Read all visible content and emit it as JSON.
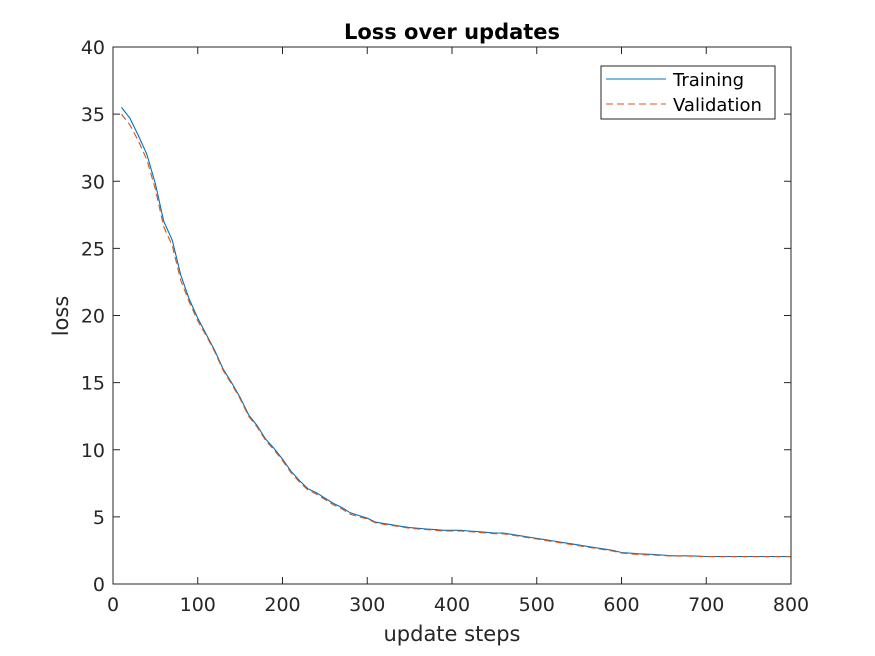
{
  "chart_data": {
    "type": "line",
    "title": "Loss over updates",
    "xlabel": "update steps",
    "ylabel": "loss",
    "xlim": [
      0,
      800
    ],
    "ylim": [
      0,
      40
    ],
    "xticks": [
      0,
      100,
      200,
      300,
      400,
      500,
      600,
      700,
      800
    ],
    "yticks": [
      0,
      5,
      10,
      15,
      20,
      25,
      30,
      35,
      40
    ],
    "grid": false,
    "legend_position": "top-right",
    "series": [
      {
        "name": "Training",
        "color": "#0072bd",
        "style": "solid",
        "x": [
          10,
          20,
          30,
          40,
          50,
          60,
          70,
          80,
          90,
          100,
          110,
          120,
          130,
          140,
          150,
          160,
          170,
          180,
          190,
          200,
          210,
          220,
          230,
          240,
          250,
          260,
          270,
          280,
          290,
          300,
          310,
          320,
          330,
          340,
          350,
          360,
          370,
          380,
          390,
          400,
          410,
          420,
          430,
          440,
          450,
          460,
          470,
          480,
          490,
          500,
          510,
          520,
          530,
          540,
          550,
          560,
          570,
          580,
          590,
          600,
          620,
          640,
          660,
          680,
          700,
          720,
          740,
          760,
          780,
          800
        ],
        "y": [
          35.5,
          34.7,
          33.4,
          32.0,
          29.8,
          27.0,
          25.6,
          23.0,
          21.2,
          19.8,
          18.6,
          17.4,
          16.0,
          15.0,
          13.9,
          12.6,
          11.8,
          10.8,
          10.1,
          9.3,
          8.4,
          7.7,
          7.1,
          6.8,
          6.4,
          6.0,
          5.7,
          5.3,
          5.1,
          4.9,
          4.6,
          4.5,
          4.4,
          4.3,
          4.2,
          4.15,
          4.1,
          4.05,
          4.0,
          4.0,
          4.0,
          3.95,
          3.9,
          3.85,
          3.8,
          3.8,
          3.7,
          3.6,
          3.5,
          3.4,
          3.3,
          3.2,
          3.1,
          3.0,
          2.9,
          2.8,
          2.7,
          2.6,
          2.5,
          2.35,
          2.25,
          2.2,
          2.1,
          2.1,
          2.05,
          2.05,
          2.05,
          2.05,
          2.05,
          2.05
        ]
      },
      {
        "name": "Validation",
        "color": "#d95319",
        "style": "dashed",
        "x": [
          10,
          20,
          30,
          40,
          50,
          60,
          70,
          80,
          90,
          100,
          110,
          120,
          130,
          140,
          150,
          160,
          170,
          180,
          190,
          200,
          210,
          220,
          230,
          240,
          250,
          260,
          270,
          280,
          290,
          300,
          310,
          320,
          330,
          340,
          350,
          360,
          370,
          380,
          390,
          400,
          410,
          420,
          430,
          440,
          450,
          460,
          470,
          480,
          490,
          500,
          510,
          520,
          530,
          540,
          550,
          560,
          570,
          580,
          590,
          600,
          620,
          640,
          660,
          680,
          700,
          720,
          740,
          760,
          780,
          800
        ],
        "y": [
          35.0,
          34.2,
          33.0,
          31.6,
          29.4,
          26.6,
          25.2,
          22.6,
          21.0,
          19.6,
          18.5,
          17.3,
          15.9,
          14.9,
          13.8,
          12.5,
          11.7,
          10.7,
          10.0,
          9.2,
          8.3,
          7.6,
          7.0,
          6.7,
          6.3,
          5.9,
          5.6,
          5.2,
          5.0,
          4.85,
          4.55,
          4.45,
          4.35,
          4.25,
          4.15,
          4.1,
          4.05,
          4.0,
          3.95,
          3.95,
          3.95,
          3.9,
          3.85,
          3.8,
          3.75,
          3.75,
          3.65,
          3.55,
          3.45,
          3.35,
          3.25,
          3.15,
          3.05,
          2.95,
          2.85,
          2.75,
          2.65,
          2.55,
          2.45,
          2.3,
          2.2,
          2.15,
          2.08,
          2.08,
          2.03,
          2.03,
          2.03,
          2.03,
          2.03,
          2.03
        ]
      }
    ]
  }
}
